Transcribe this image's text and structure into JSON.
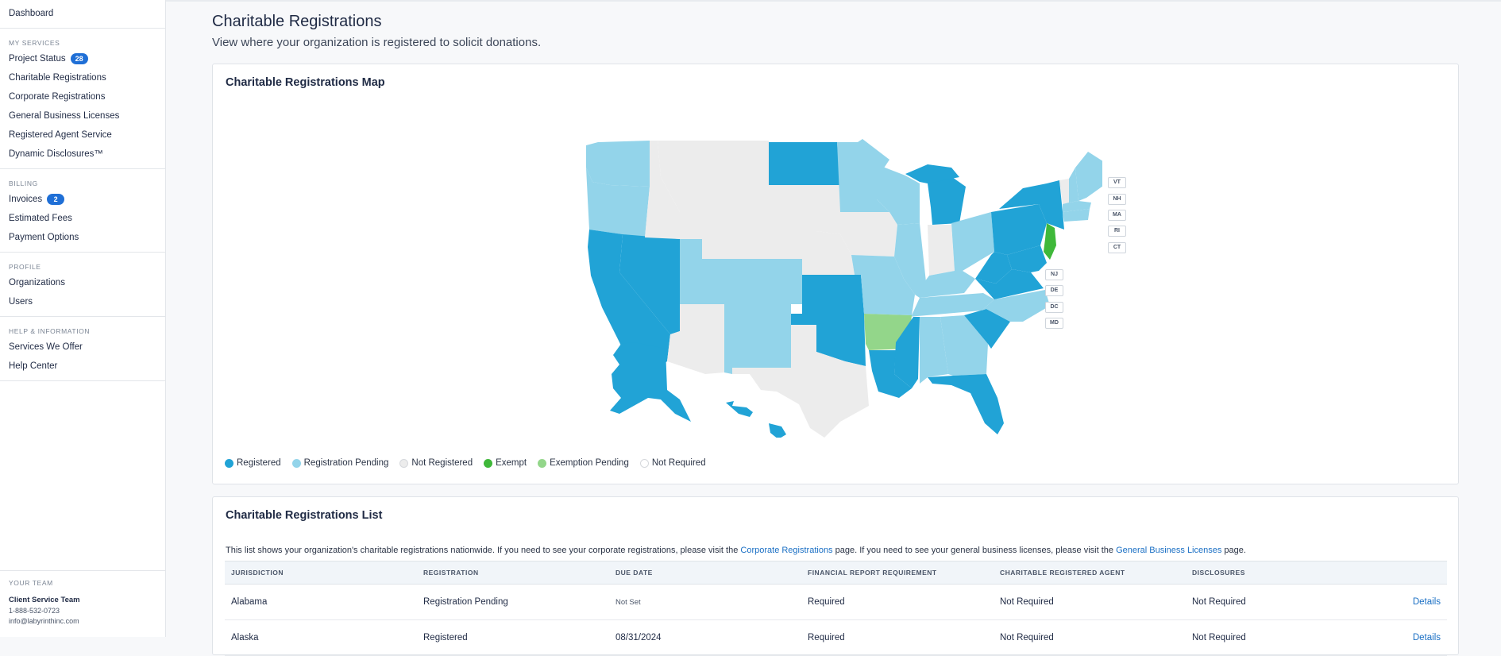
{
  "sidebar": {
    "dashboard": "Dashboard",
    "sections": [
      {
        "heading": "MY SERVICES",
        "items": [
          {
            "label": "Project Status",
            "badge": "28"
          },
          {
            "label": "Charitable Registrations"
          },
          {
            "label": "Corporate Registrations"
          },
          {
            "label": "General Business Licenses"
          },
          {
            "label": "Registered Agent Service"
          },
          {
            "label": "Dynamic Disclosures™"
          }
        ]
      },
      {
        "heading": "BILLING",
        "items": [
          {
            "label": "Invoices",
            "badge": "2"
          },
          {
            "label": "Estimated Fees"
          },
          {
            "label": "Payment Options"
          }
        ]
      },
      {
        "heading": "PROFILE",
        "items": [
          {
            "label": "Organizations"
          },
          {
            "label": "Users"
          }
        ]
      },
      {
        "heading": "HELP & INFORMATION",
        "items": [
          {
            "label": "Services We Offer"
          },
          {
            "label": "Help Center"
          }
        ]
      }
    ],
    "team": {
      "heading": "YOUR TEAM",
      "name": "Client Service Team",
      "phone": "1-888-532-0723",
      "email": "info@labyrinthinc.com"
    }
  },
  "page": {
    "title": "Charitable Registrations",
    "subtitle": "View where your organization is registered to solicit donations."
  },
  "map_card": {
    "title": "Charitable Registrations Map",
    "colors": {
      "registered": "#21a3d6",
      "pending": "#93d4ea",
      "not_registered": "#ececec",
      "exempt": "#3fb83a",
      "exemption_pending": "#93d68a",
      "not_required": "#ffffff"
    },
    "small_state_labels": [
      "VT",
      "NH",
      "MA",
      "RI",
      "CT",
      "NJ",
      "DE",
      "DC",
      "MD"
    ],
    "legend": [
      {
        "label": "Registered",
        "color": "#21a3d6"
      },
      {
        "label": "Registration Pending",
        "color": "#93d4ea"
      },
      {
        "label": "Not Registered",
        "color": "#ececec"
      },
      {
        "label": "Exempt",
        "color": "#3fb83a"
      },
      {
        "label": "Exemption Pending",
        "color": "#93d68a"
      },
      {
        "label": "Not Required",
        "color": "#ffffff"
      }
    ]
  },
  "list_card": {
    "title": "Charitable Registrations List",
    "desc_pre": "This list shows your organization's charitable registrations nationwide. If you need to see your corporate registrations, please visit the ",
    "desc_link1": "Corporate Registrations",
    "desc_mid": " page. If you need to see your general business licenses, please visit the ",
    "desc_link2": "General Business Licenses",
    "desc_post": " page.",
    "columns": [
      "JURISDICTION",
      "REGISTRATION",
      "DUE DATE",
      "FINANCIAL REPORT REQUIREMENT",
      "CHARITABLE REGISTERED AGENT",
      "DISCLOSURES"
    ],
    "details_label": "Details",
    "rows": [
      {
        "jurisdiction": "Alabama",
        "registration": "Registration Pending",
        "due": "Not Set",
        "financial": "Required",
        "agent": "Not Required",
        "disclosures": "Not Required"
      },
      {
        "jurisdiction": "Alaska",
        "registration": "Registered",
        "due": "08/31/2024",
        "financial": "Required",
        "agent": "Not Required",
        "disclosures": "Not Required"
      }
    ]
  }
}
